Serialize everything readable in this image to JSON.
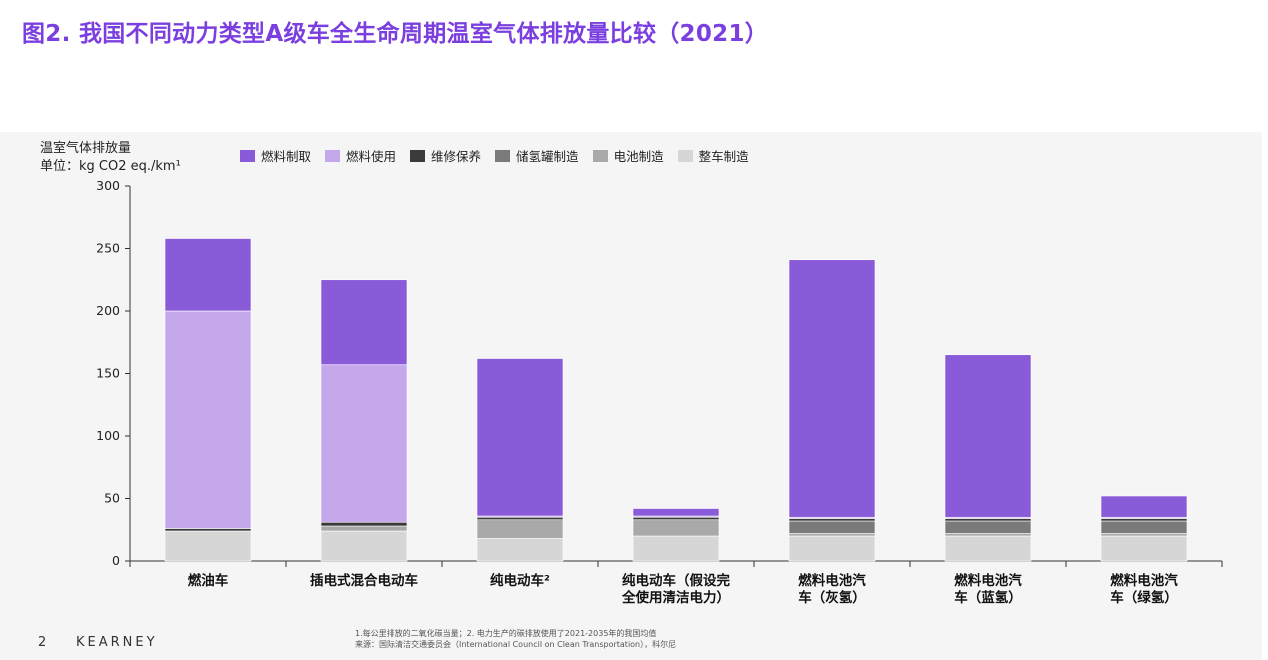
{
  "title": "图2. 我国不同动力类型A级车全生命周期温室气体排放量比较（2021）",
  "yaxis": {
    "label_line1": "温室气体排放量",
    "label_line2": "单位：kg CO2 eq./km¹"
  },
  "legend": [
    {
      "name": "燃料制取",
      "color": "#8a5bd9"
    },
    {
      "name": "燃料使用",
      "color": "#c5a8ec"
    },
    {
      "name": "维修保养",
      "color": "#3b3b3b"
    },
    {
      "name": "储氢罐制造",
      "color": "#7a7a7a"
    },
    {
      "name": "电池制造",
      "color": "#a9a9a9"
    },
    {
      "name": "整车制造",
      "color": "#d6d6d6"
    }
  ],
  "chart_data": {
    "type": "bar",
    "stacked": true,
    "ylim": [
      0,
      300
    ],
    "yticks": [
      0,
      50,
      100,
      150,
      200,
      250,
      300
    ],
    "categories": [
      [
        "燃油车"
      ],
      [
        "插电式混合电动车"
      ],
      [
        "纯电动车²"
      ],
      [
        "纯电动车（假设完",
        "全使用清洁电力）"
      ],
      [
        "燃料电池汽",
        "车（灰氢）"
      ],
      [
        "燃料电池汽",
        "车（蓝氢）"
      ],
      [
        "燃料电池汽",
        "车（绿氢）"
      ]
    ],
    "series": [
      {
        "name": "整车制造",
        "color": "#d6d6d6",
        "values": [
          24,
          24,
          18,
          20,
          20,
          20,
          20
        ]
      },
      {
        "name": "电池制造",
        "color": "#a9a9a9",
        "values": [
          0,
          4,
          15,
          13,
          2,
          2,
          2
        ]
      },
      {
        "name": "储氢罐制造",
        "color": "#7a7a7a",
        "values": [
          0,
          0,
          0,
          0,
          10,
          10,
          10
        ]
      },
      {
        "name": "维修保养",
        "color": "#3b3b3b",
        "values": [
          2,
          3,
          2,
          2,
          2,
          2,
          2
        ]
      },
      {
        "name": "燃料使用",
        "color": "#c5a8ec",
        "values": [
          174,
          126,
          1,
          1,
          1,
          1,
          1
        ]
      },
      {
        "name": "燃料制取",
        "color": "#8a5bd9",
        "values": [
          58,
          68,
          126,
          6,
          206,
          130,
          17
        ]
      }
    ]
  },
  "footer": {
    "page": "2",
    "brand": "KEARNEY",
    "note1": "1.每公里排放的二氧化碳当量；2. 电力生产的碳排放使用了2021-2035年的我国均值",
    "note2": "来源：国际清洁交通委员会（International Council on Clean Transportation），科尔尼"
  }
}
